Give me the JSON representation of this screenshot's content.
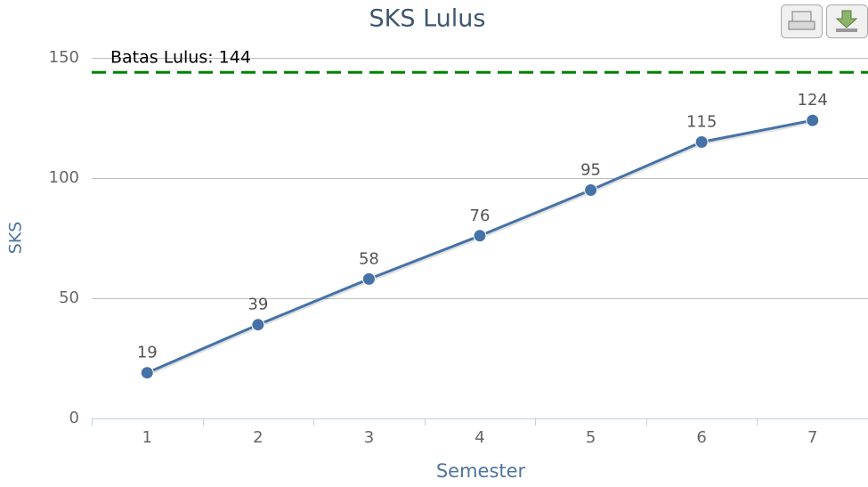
{
  "chart_data": {
    "type": "line",
    "title": "SKS Lulus",
    "x_label": "Semester",
    "y_label": "SKS",
    "categories": [
      "1",
      "2",
      "3",
      "4",
      "5",
      "6",
      "7"
    ],
    "values": [
      19,
      39,
      58,
      76,
      95,
      115,
      124
    ],
    "color": "#4572A7",
    "ylim": [
      0,
      150
    ],
    "yticks": [
      0,
      50,
      100,
      150
    ],
    "grid": true,
    "plot_line": {
      "value": 144,
      "label": "Batas Lulus: 144",
      "color": "#008000"
    }
  }
}
